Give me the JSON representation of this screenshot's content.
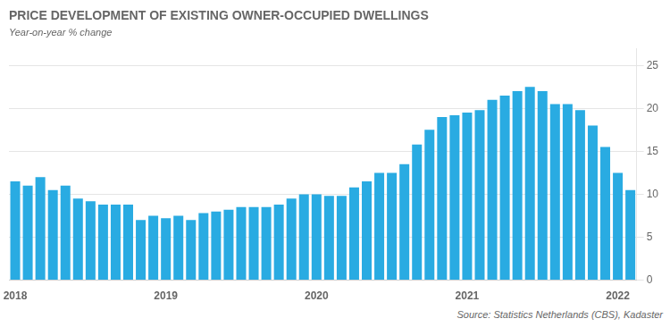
{
  "chart_data": {
    "type": "bar",
    "title": "PRICE DEVELOPMENT OF EXISTING OWNER-OCCUPIED DWELLINGS",
    "subtitle": "Year-on-year % change",
    "annotations": [
      "Source: Statistics Netherlands (CBS), Kadaster"
    ],
    "categories": [
      "2018",
      null,
      null,
      null,
      null,
      null,
      null,
      null,
      null,
      null,
      null,
      null,
      "2019",
      null,
      null,
      null,
      null,
      null,
      null,
      null,
      null,
      null,
      null,
      null,
      "2020",
      null,
      null,
      null,
      null,
      null,
      null,
      null,
      null,
      null,
      null,
      null,
      "2021",
      null,
      null,
      null,
      null,
      null,
      null,
      null,
      null,
      null,
      null,
      null,
      "2022",
      null
    ],
    "values": [
      11.5,
      11.0,
      12.0,
      10.5,
      11.0,
      9.5,
      9.2,
      8.8,
      8.8,
      8.8,
      7.0,
      7.5,
      7.2,
      7.5,
      7.0,
      7.8,
      8.0,
      8.2,
      8.5,
      8.5,
      8.5,
      8.8,
      9.5,
      10.0,
      10.0,
      9.8,
      9.8,
      10.8,
      11.5,
      12.5,
      12.5,
      13.5,
      15.8,
      17.5,
      19.0,
      19.2,
      19.5,
      19.8,
      21.0,
      21.5,
      22.0,
      22.5,
      22.0,
      20.5,
      20.5,
      19.8,
      18.0,
      15.5,
      12.5,
      10.5
    ],
    "color": "#29ABE2",
    "ylim": [
      0,
      27
    ],
    "yticks": [
      0,
      5,
      10,
      15,
      20,
      25
    ],
    "grid": true
  }
}
